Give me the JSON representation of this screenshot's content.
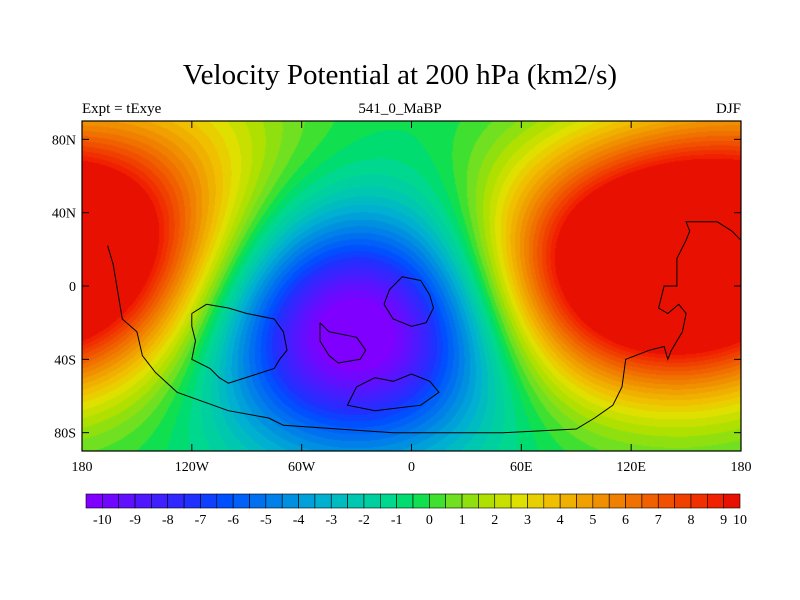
{
  "header": {
    "title": "Velocity Potential at 200 hPa (km2/s)",
    "left_label": "Expt = tExye",
    "center_label": "541_0_MaBP",
    "right_label": "DJF"
  },
  "map_data": {
    "type": "filled-contour",
    "x_ticks": [
      "180",
      "120W",
      "60W",
      "0",
      "60E",
      "120E",
      "180"
    ],
    "y_ticks": [
      "80N",
      "40N",
      "0",
      "40S",
      "80S"
    ],
    "lon_range": [
      -180,
      180
    ],
    "lat_range": [
      -90,
      90
    ],
    "colorbar": {
      "labels": [
        "-10",
        "-9",
        "-8",
        "-7",
        "-6",
        "-5",
        "-4",
        "-3",
        "-2",
        "-1",
        "0",
        "1",
        "2",
        "3",
        "4",
        "5",
        "6",
        "7",
        "8",
        "9",
        "10"
      ],
      "levels": [
        -10,
        -9.5,
        -9,
        -8.5,
        -8,
        -7.5,
        -7,
        -6.5,
        -6,
        -5.5,
        -5,
        -4.5,
        -4,
        -3.5,
        -3,
        -2.5,
        -2,
        -1.5,
        -1,
        -0.5,
        0,
        0.5,
        1,
        1.5,
        2,
        2.5,
        3,
        3.5,
        4,
        4.5,
        5,
        5.5,
        6,
        6.5,
        7,
        7.5,
        8,
        8.5,
        9,
        9.5,
        10
      ],
      "colors": [
        "#7f00ff",
        "#7008ff",
        "#6010ff",
        "#5018ff",
        "#4020ff",
        "#3028ff",
        "#2030ff",
        "#1040ff",
        "#0050ff",
        "#0060f8",
        "#0070f0",
        "#0080e8",
        "#0090e0",
        "#00a0d8",
        "#00b0d0",
        "#00bcc0",
        "#00c8b0",
        "#00d0a0",
        "#00d890",
        "#00dc70",
        "#10e050",
        "#40e030",
        "#70e020",
        "#90e010",
        "#b0e000",
        "#c8e000",
        "#e0e000",
        "#e8d000",
        "#f0c000",
        "#f0b000",
        "#f0a000",
        "#f09000",
        "#f08000",
        "#f07000",
        "#f06000",
        "#f05000",
        "#f04000",
        "#f03000",
        "#f02000",
        "#e81000"
      ],
      "outline": "#000000"
    },
    "field_centers": [
      {
        "lon": -30,
        "lat": -25,
        "amplitude": -11
      },
      {
        "lon": 115,
        "lat": 10,
        "amplitude": 11
      },
      {
        "lon": -178,
        "lat": 30,
        "amplitude": 7
      },
      {
        "lon": 180,
        "lat": 0,
        "amplitude": 4
      },
      {
        "lon": -120,
        "lat": 80,
        "amplitude": 2
      }
    ],
    "coastline": [
      [
        [
          -166,
          22
        ],
        [
          -163,
          12
        ],
        [
          -158,
          -18
        ],
        [
          -150,
          -25
        ],
        [
          -147,
          -38
        ],
        [
          -140,
          -47
        ],
        [
          -128,
          -58
        ],
        [
          -100,
          -68
        ],
        [
          -78,
          -72
        ],
        [
          -70,
          -76
        ],
        [
          -40,
          -78
        ],
        [
          -10,
          -80
        ],
        [
          50,
          -80
        ],
        [
          90,
          -78
        ],
        [
          100,
          -72
        ],
        [
          110,
          -65
        ],
        [
          115,
          -55
        ],
        [
          117,
          -40
        ],
        [
          130,
          -35
        ],
        [
          138,
          -33
        ],
        [
          140,
          -40
        ],
        [
          142,
          -35
        ],
        [
          148,
          -25
        ],
        [
          150,
          -15
        ],
        [
          146,
          -10
        ],
        [
          140,
          -15
        ],
        [
          135,
          -12
        ],
        [
          138,
          0
        ],
        [
          145,
          0
        ],
        [
          145,
          15
        ],
        [
          150,
          25
        ],
        [
          152,
          30
        ],
        [
          150,
          35
        ],
        [
          167,
          35
        ],
        [
          175,
          30
        ],
        [
          180,
          25
        ]
      ],
      [
        [
          -120,
          -15
        ],
        [
          -112,
          -10
        ],
        [
          -100,
          -12
        ],
        [
          -90,
          -15
        ],
        [
          -75,
          -18
        ],
        [
          -70,
          -25
        ],
        [
          -68,
          -35
        ],
        [
          -72,
          -40
        ],
        [
          -75,
          -45
        ],
        [
          -100,
          -53
        ],
        [
          -105,
          -50
        ],
        [
          -110,
          -45
        ],
        [
          -120,
          -40
        ],
        [
          -118,
          -30
        ],
        [
          -120,
          -22
        ],
        [
          -120,
          -15
        ]
      ],
      [
        [
          -50,
          -20
        ],
        [
          -45,
          -25
        ],
        [
          -30,
          -28
        ],
        [
          -25,
          -35
        ],
        [
          -28,
          -40
        ],
        [
          -40,
          -42
        ],
        [
          -45,
          -38
        ],
        [
          -50,
          -30
        ],
        [
          -50,
          -20
        ]
      ],
      [
        [
          -15,
          -10
        ],
        [
          -12,
          -2
        ],
        [
          -5,
          5
        ],
        [
          5,
          3
        ],
        [
          10,
          -5
        ],
        [
          12,
          -12
        ],
        [
          8,
          -20
        ],
        [
          0,
          -22
        ],
        [
          -10,
          -18
        ],
        [
          -15,
          -10
        ]
      ],
      [
        [
          -30,
          -55
        ],
        [
          -20,
          -50
        ],
        [
          -10,
          -52
        ],
        [
          0,
          -48
        ],
        [
          10,
          -52
        ],
        [
          15,
          -58
        ],
        [
          5,
          -65
        ],
        [
          -20,
          -68
        ],
        [
          -35,
          -65
        ],
        [
          -30,
          -55
        ]
      ]
    ]
  }
}
